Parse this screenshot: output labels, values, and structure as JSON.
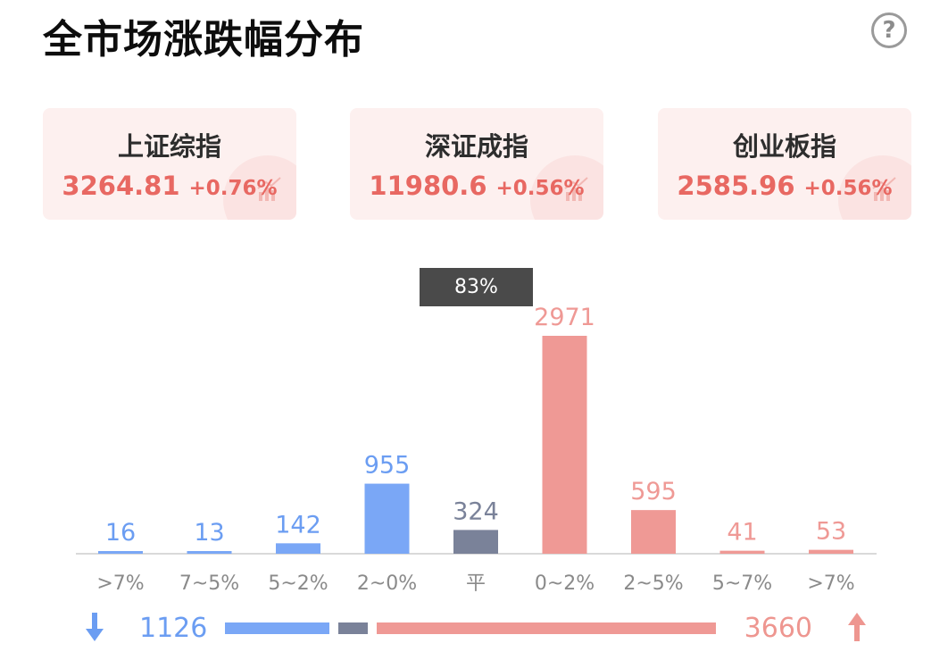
{
  "header": {
    "title": "全市场涨跌幅分布",
    "help_glyph": "?"
  },
  "indices": [
    {
      "name": "上证综指",
      "value": "3264.81",
      "change": "+0.76%"
    },
    {
      "name": "深证成指",
      "value": "11980.6",
      "change": "+0.56%"
    },
    {
      "name": "创业板指",
      "value": "2585.96",
      "change": "+0.56%"
    }
  ],
  "tooltip": {
    "text": "83%"
  },
  "colors": {
    "down": "#7aa7f6",
    "down_label": "#6b9df2",
    "flat": "#7a8299",
    "up": "#ef9995",
    "up_text": "#e86862"
  },
  "chart_data": {
    "type": "bar",
    "categories": [
      ">7%",
      "7~5%",
      "5~2%",
      "2~0%",
      "平",
      "0~2%",
      "2~5%",
      "5~7%",
      ">7%"
    ],
    "values": [
      16,
      13,
      142,
      955,
      324,
      2971,
      595,
      41,
      53
    ],
    "groups": [
      "down",
      "down",
      "down",
      "down",
      "flat",
      "up",
      "up",
      "up",
      "up"
    ],
    "ylim": [
      0,
      2971
    ]
  },
  "summary": {
    "down_total": "1126",
    "up_total": "3660",
    "down_count": 1126,
    "flat_count": 324,
    "up_count": 3660
  }
}
